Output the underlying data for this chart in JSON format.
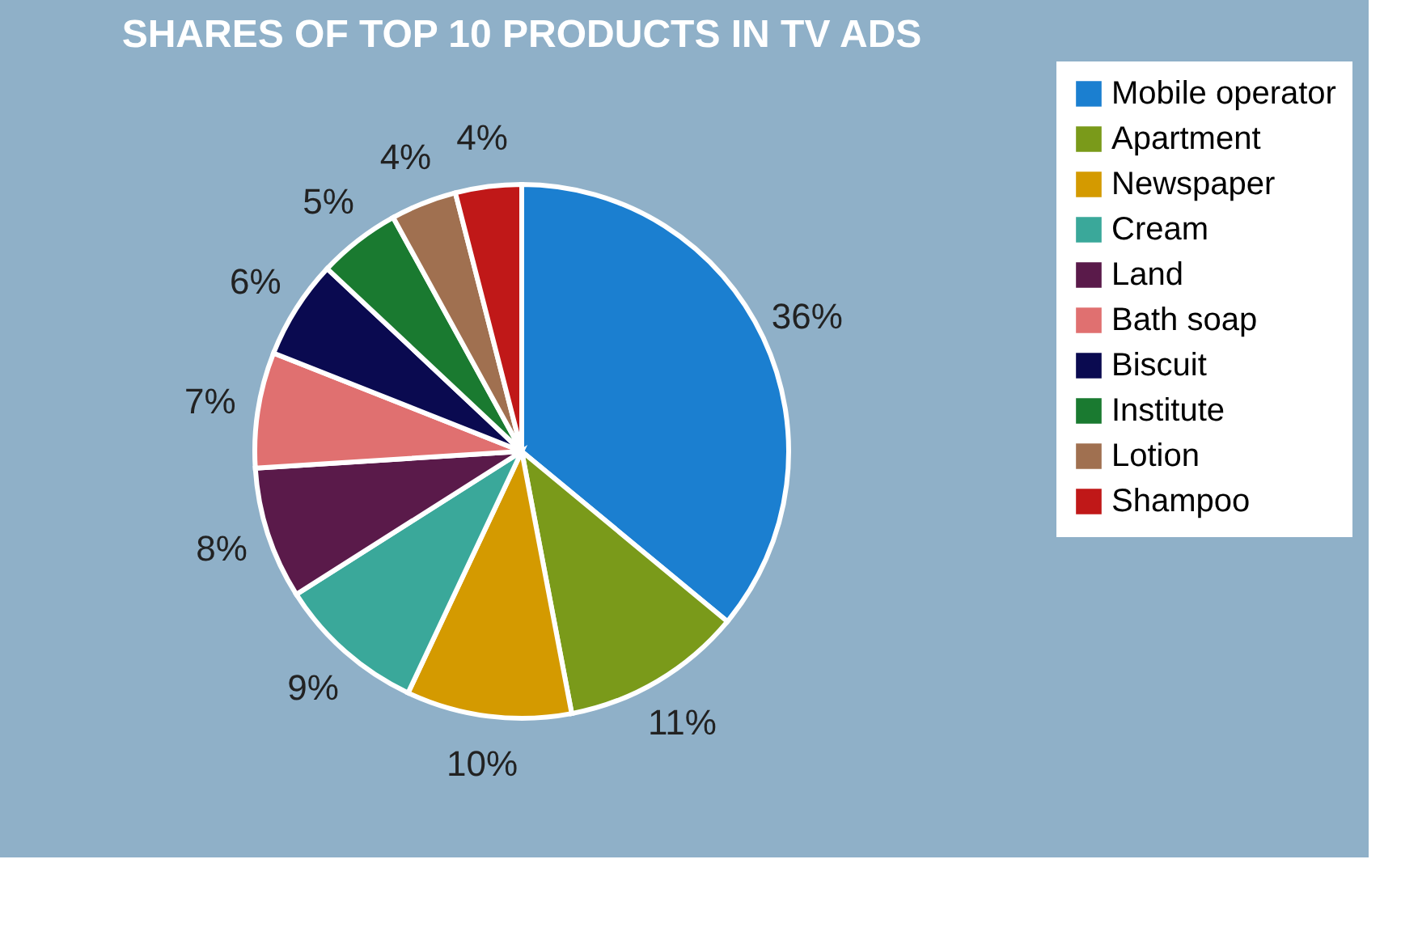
{
  "chart_data": {
    "type": "pie",
    "title": "SHARES OF TOP 10 PRODUCTS IN TV ADS",
    "categories": [
      "Mobile operator",
      "Apartment",
      "Newspaper",
      "Cream",
      "Land",
      "Bath soap",
      "Biscuit",
      "Institute",
      "Lotion",
      "Shampoo"
    ],
    "values": [
      36,
      11,
      10,
      9,
      8,
      7,
      6,
      5,
      4,
      4
    ],
    "value_labels": [
      "36%",
      "11%",
      "10%",
      "9%",
      "8%",
      "7%",
      "6%",
      "5%",
      "4%",
      "4%"
    ],
    "colors": [
      "#1b7fd0",
      "#7a9a1a",
      "#d49a00",
      "#3aa89a",
      "#5a1a4a",
      "#e07070",
      "#0a0a50",
      "#1a7a30",
      "#a07050",
      "#c01818"
    ],
    "legend": "right"
  }
}
